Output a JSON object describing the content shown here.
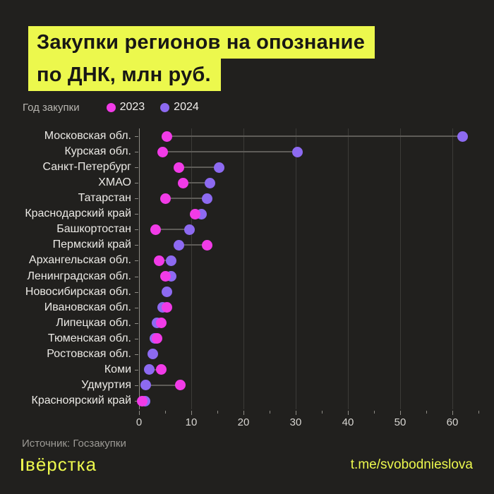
{
  "title": {
    "line1": "Закупки регионов на опознание",
    "line2": "по ДНК, млн руб."
  },
  "legend": {
    "title": "Год закупки",
    "items": [
      {
        "label": "2023",
        "color": "#f13be7"
      },
      {
        "label": "2024",
        "color": "#8d6af1"
      }
    ]
  },
  "chart_data": {
    "type": "dumbbell",
    "title": "Закупки регионов на опознание по ДНК, млн руб.",
    "categories": [
      "Московская обл.",
      "Курская обл.",
      "Санкт-Петербург",
      "ХМАО",
      "Татарстан",
      "Краснодарский край",
      "Башкортостан",
      "Пермский край",
      "Архангельская обл.",
      "Ленинградская обл.",
      "Новосибирская обл.",
      "Ивановская обл.",
      "Липецкая обл.",
      "Тюменская обл.",
      "Ростовская обл.",
      "Коми",
      "Удмуртия",
      "Красноярский край"
    ],
    "series": [
      {
        "name": "2023",
        "color": "#f13be7",
        "values": [
          5.3,
          4.5,
          7.6,
          8.4,
          5.1,
          10.7,
          3.2,
          13.0,
          3.9,
          5.1,
          null,
          5.3,
          4.2,
          3.4,
          null,
          4.3,
          7.9,
          0.6
        ]
      },
      {
        "name": "2024",
        "color": "#8d6af1",
        "values": [
          62.0,
          30.3,
          15.4,
          13.6,
          13.0,
          12.0,
          9.6,
          7.7,
          6.2,
          6.1,
          5.4,
          4.5,
          3.4,
          3.1,
          2.7,
          2.0,
          1.3,
          1.1
        ]
      }
    ],
    "xlabel": "",
    "ylabel": "",
    "xlim": [
      0,
      65
    ],
    "x_ticks": [
      0,
      10,
      20,
      30,
      40,
      50,
      60
    ],
    "x_minor_tick_step": 5,
    "grid": "vertical",
    "legend_position": "top"
  },
  "footer": {
    "source": "Источник: Госзакупки",
    "brand": "вёрстка",
    "link": "t.me/svobodnieslova"
  },
  "colors": {
    "background": "#21201e",
    "accent_yellow": "#ecf84d",
    "pink_2023": "#f13be7",
    "purple_2024": "#8d6af1",
    "gridline": "#3c3b38",
    "connector": "#5e5c58"
  }
}
